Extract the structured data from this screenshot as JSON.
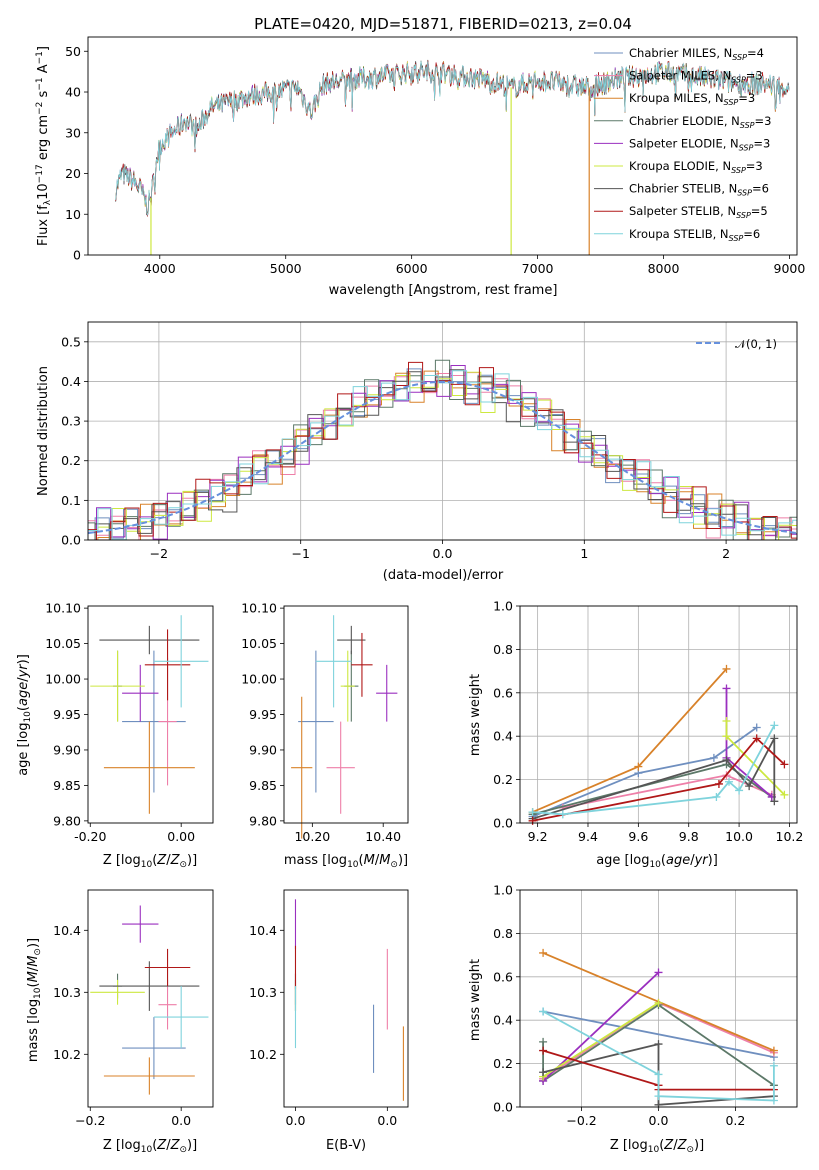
{
  "title": "PLATE=0420, MJD=51871, FIBERID=0213, z=0.04",
  "colors": {
    "chabrier_miles": "#6f8fbf",
    "salpeter_miles": "#ee7fa8",
    "kroupa_miles": "#d8822a",
    "chabrier_elodie": "#5c7868",
    "salpeter_elodie": "#9a2fbf",
    "kroupa_elodie": "#cde840",
    "chabrier_stelib": "#555555",
    "salpeter_stelib": "#b01818",
    "kroupa_stelib": "#7fd3dc",
    "normal": "#6690dd",
    "grid": "#b0b0b0"
  },
  "chart_data": [
    {
      "id": "spectrum",
      "type": "line",
      "title": "PLATE=0420, MJD=51871, FIBERID=0213, z=0.04",
      "xlabel": "wavelength [Angstrom, rest frame]",
      "ylabel": "Flux [f_λ 10^-17 erg cm^-2 s^-1 A^-1]",
      "xlim": [
        3430,
        9060
      ],
      "ylim": [
        0,
        53.5
      ],
      "xticks": [
        4000,
        5000,
        6000,
        7000,
        8000,
        9000
      ],
      "yticks": [
        0,
        10,
        20,
        30,
        40,
        50
      ],
      "grid": false,
      "legend_position": "top-right",
      "legend": [
        "Chabrier MILES, N_SSP=4",
        "Salpeter MILES, N_SSP=3",
        "Kroupa MILES, N_SSP=3",
        "Chabrier ELODIE, N_SSP=3",
        "Salpeter ELODIE, N_SSP=3",
        "Kroupa ELODIE, N_SSP=3",
        "Chabrier STELIB, N_SSP=6",
        "Salpeter STELIB, N_SSP=5",
        "Kroupa STELIB, N_SSP=6"
      ],
      "continuum": [
        [
          3650,
          16
        ],
        [
          3700,
          20
        ],
        [
          3800,
          18
        ],
        [
          3850,
          16
        ],
        [
          3900,
          12
        ],
        [
          3930,
          14
        ],
        [
          3970,
          23
        ],
        [
          4000,
          27
        ],
        [
          4100,
          30
        ],
        [
          4200,
          33
        ],
        [
          4300,
          31
        ],
        [
          4400,
          36
        ],
        [
          4500,
          37
        ],
        [
          4700,
          39
        ],
        [
          4900,
          40
        ],
        [
          5100,
          41
        ],
        [
          5200,
          35
        ],
        [
          5300,
          42
        ],
        [
          5500,
          43
        ],
        [
          5800,
          44
        ],
        [
          6000,
          45
        ],
        [
          6200,
          45
        ],
        [
          6400,
          44
        ],
        [
          6600,
          43
        ],
        [
          6800,
          41
        ],
        [
          7000,
          43
        ],
        [
          7200,
          42
        ],
        [
          7400,
          41
        ],
        [
          7600,
          43
        ],
        [
          7800,
          44
        ],
        [
          8000,
          45
        ],
        [
          8200,
          44
        ],
        [
          8400,
          43
        ],
        [
          8600,
          42
        ],
        [
          8800,
          42
        ],
        [
          9000,
          41
        ]
      ],
      "dropouts": [
        {
          "x": 3930,
          "series": "kroupa_elodie",
          "y": 0
        },
        {
          "x": 6790,
          "series": "kroupa_elodie",
          "y": 0
        },
        {
          "x": 7410,
          "series": "kroupa_miles",
          "y": 0
        }
      ]
    },
    {
      "id": "residuals",
      "type": "histogram",
      "xlabel": "(data-model)/error",
      "ylabel": "Normed distribution",
      "xlim": [
        -2.5,
        2.5
      ],
      "ylim": [
        0,
        0.55
      ],
      "xticks": [
        -2,
        -1,
        0,
        1,
        2
      ],
      "yticks": [
        0.0,
        0.1,
        0.2,
        0.3,
        0.4,
        0.5
      ],
      "grid": true,
      "legend_position": "top-right",
      "legend": [
        "𝒩(0, 1)"
      ],
      "bin_width": 0.1,
      "bins_start": -2.5,
      "series": [
        {
          "key": "chabrier_miles",
          "offsets": [
            0.0,
            0.01,
            -0.01,
            0.02,
            -0.01,
            0.0,
            0.01,
            -0.02,
            0.01,
            0.0
          ]
        },
        {
          "key": "salpeter_miles",
          "offsets": [
            0.01,
            -0.01,
            0.02,
            0.0,
            -0.02,
            0.01,
            0.0,
            0.01,
            -0.01,
            0.02
          ]
        },
        {
          "key": "kroupa_miles",
          "offsets": [
            -0.01,
            0.0,
            0.01,
            -0.02,
            0.02,
            0.0,
            -0.01,
            0.01,
            0.0,
            -0.01
          ]
        },
        {
          "key": "chabrier_elodie",
          "offsets": [
            0.02,
            -0.02,
            0.0,
            0.01,
            -0.01,
            0.02,
            -0.02,
            0.0,
            0.01,
            0.0
          ]
        },
        {
          "key": "salpeter_elodie",
          "offsets": [
            0.0,
            0.02,
            -0.01,
            0.0,
            0.01,
            -0.02,
            0.02,
            -0.01,
            0.0,
            0.01
          ]
        },
        {
          "key": "kroupa_elodie",
          "offsets": [
            0.01,
            0.0,
            0.02,
            -0.01,
            0.0,
            0.01,
            -0.01,
            0.02,
            -0.02,
            0.0
          ]
        },
        {
          "key": "chabrier_stelib",
          "offsets": [
            -0.02,
            0.01,
            0.0,
            0.01,
            -0.01,
            0.0,
            0.02,
            -0.01,
            0.01,
            -0.02
          ]
        },
        {
          "key": "salpeter_stelib",
          "offsets": [
            0.0,
            -0.01,
            0.01,
            0.02,
            -0.02,
            0.01,
            0.0,
            -0.02,
            0.02,
            0.01
          ]
        },
        {
          "key": "kroupa_stelib",
          "offsets": [
            0.01,
            0.02,
            -0.02,
            0.0,
            0.01,
            -0.01,
            0.01,
            0.0,
            -0.01,
            0.02
          ]
        }
      ]
    },
    {
      "id": "age_vs_Z",
      "type": "errorbar",
      "xlabel": "Z [log10(Z/Z⊙)]",
      "ylabel": "age [log10(age/yr)]",
      "xlim": [
        -0.205,
        0.07
      ],
      "ylim": [
        9.797,
        10.103
      ],
      "xticks": [
        -0.2,
        0.0
      ],
      "yticks": [
        9.8,
        9.85,
        9.9,
        9.95,
        10.0,
        10.05,
        10.1
      ],
      "grid": false,
      "points": [
        {
          "key": "chabrier_miles",
          "x": -0.06,
          "y": 9.94,
          "xerr": 0.07,
          "yerr": 0.1
        },
        {
          "key": "salpeter_miles",
          "x": -0.03,
          "y": 9.94,
          "xerr": 0.02,
          "yerr": 0.09
        },
        {
          "key": "kroupa_miles",
          "x": -0.07,
          "y": 9.875,
          "xerr": 0.1,
          "yerr": 0.065
        },
        {
          "key": "chabrier_elodie",
          "x": -0.14,
          "y": 9.99,
          "xerr": 0.01,
          "yerr": 0.05
        },
        {
          "key": "salpeter_elodie",
          "x": -0.09,
          "y": 9.98,
          "xerr": 0.04,
          "yerr": 0.04
        },
        {
          "key": "kroupa_elodie",
          "x": -0.14,
          "y": 9.99,
          "xerr": 0.06,
          "yerr": 0.05
        },
        {
          "key": "chabrier_stelib",
          "x": -0.07,
          "y": 10.055,
          "xerr": 0.11,
          "yerr": 0.02
        },
        {
          "key": "salpeter_stelib",
          "x": -0.03,
          "y": 10.02,
          "xerr": 0.05,
          "yerr": 0.05
        },
        {
          "key": "kroupa_stelib",
          "x": 0.0,
          "y": 10.025,
          "xerr": 0.06,
          "yerr": 0.065
        }
      ]
    },
    {
      "id": "age_vs_mass",
      "type": "errorbar",
      "xlabel": "mass [log10(M/M⊙)]",
      "ylabel": "",
      "xlim": [
        10.12,
        10.47
      ],
      "ylim": [
        9.797,
        10.103
      ],
      "xticks": [
        10.2,
        10.4
      ],
      "yticks": [
        9.8,
        9.85,
        9.9,
        9.95,
        10.0,
        10.05,
        10.1
      ],
      "grid": false,
      "points": [
        {
          "key": "chabrier_miles",
          "x": 10.21,
          "y": 9.94,
          "xerr": 0.05,
          "yerr": 0.1
        },
        {
          "key": "salpeter_miles",
          "x": 10.28,
          "y": 9.875,
          "xerr": 0.04,
          "yerr": 0.065
        },
        {
          "key": "kroupa_miles",
          "x": 10.17,
          "y": 9.875,
          "xerr": 0.03,
          "yerr": 0.1
        },
        {
          "key": "chabrier_elodie",
          "x": 10.31,
          "y": 9.99,
          "xerr": 0.02,
          "yerr": 0.05
        },
        {
          "key": "salpeter_elodie",
          "x": 10.41,
          "y": 9.98,
          "xerr": 0.03,
          "yerr": 0.04
        },
        {
          "key": "kroupa_elodie",
          "x": 10.3,
          "y": 9.99,
          "xerr": 0.02,
          "yerr": 0.05
        },
        {
          "key": "chabrier_stelib",
          "x": 10.31,
          "y": 10.055,
          "xerr": 0.04,
          "yerr": 0.02
        },
        {
          "key": "salpeter_stelib",
          "x": 10.34,
          "y": 10.02,
          "xerr": 0.03,
          "yerr": 0.045
        },
        {
          "key": "kroupa_stelib",
          "x": 10.26,
          "y": 10.025,
          "xerr": 0.05,
          "yerr": 0.065
        }
      ]
    },
    {
      "id": "mass_weight_vs_age",
      "type": "line",
      "xlabel": "age [log10(age/yr)]",
      "ylabel": "mass weight",
      "xlim": [
        9.13,
        10.23
      ],
      "ylim": [
        0,
        1.0
      ],
      "xticks": [
        9.2,
        9.4,
        9.6,
        9.8,
        10.0,
        10.2
      ],
      "yticks": [
        0.0,
        0.2,
        0.4,
        0.6,
        0.8,
        1.0
      ],
      "grid": true,
      "series": [
        {
          "key": "chabrier_miles",
          "x": [
            9.18,
            9.6,
            9.9,
            10.07
          ],
          "y": [
            0.03,
            0.23,
            0.3,
            0.44
          ]
        },
        {
          "key": "salpeter_miles",
          "x": [
            9.3,
            9.95,
            10.13
          ],
          "y": [
            0.07,
            0.22,
            0.13
          ]
        },
        {
          "key": "kroupa_miles",
          "x": [
            9.18,
            9.6,
            9.95
          ],
          "y": [
            0.05,
            0.26,
            0.71
          ]
        },
        {
          "key": "chabrier_elodie",
          "x": [
            9.18,
            9.95,
            10.13
          ],
          "y": [
            0.04,
            0.27,
            0.12
          ]
        },
        {
          "key": "salpeter_elodie",
          "x": [
            9.95,
            9.95,
            10.13
          ],
          "y": [
            0.62,
            0.3,
            0.12
          ]
        },
        {
          "key": "kroupa_elodie",
          "x": [
            9.95,
            9.95,
            10.18
          ],
          "y": [
            0.47,
            0.4,
            0.13
          ]
        },
        {
          "key": "chabrier_stelib",
          "x": [
            9.18,
            9.95,
            10.04,
            10.14,
            10.14
          ],
          "y": [
            0.02,
            0.29,
            0.17,
            0.39,
            0.1
          ]
        },
        {
          "key": "salpeter_stelib",
          "x": [
            9.18,
            9.92,
            10.07,
            10.18
          ],
          "y": [
            0.01,
            0.18,
            0.39,
            0.27
          ]
        },
        {
          "key": "kroupa_stelib",
          "x": [
            9.18,
            9.3,
            9.91,
            9.96,
            10.0,
            10.14
          ],
          "y": [
            0.05,
            0.04,
            0.12,
            0.19,
            0.15,
            0.45
          ]
        }
      ]
    },
    {
      "id": "mass_vs_Z",
      "type": "errorbar",
      "xlabel": "Z [log10(Z/Z⊙)]",
      "ylabel": "mass [log10(M/M⊙)]",
      "xlim": [
        -0.205,
        0.07
      ],
      "ylim": [
        10.115,
        10.465
      ],
      "xticks": [
        -0.2,
        0.0
      ],
      "yticks": [
        10.2,
        10.3,
        10.4
      ],
      "grid": false,
      "points": [
        {
          "key": "chabrier_miles",
          "x": -0.06,
          "y": 10.21,
          "xerr": 0.07,
          "yerr": 0.05
        },
        {
          "key": "salpeter_miles",
          "x": -0.03,
          "y": 10.28,
          "xerr": 0.02,
          "yerr": 0.04
        },
        {
          "key": "kroupa_miles",
          "x": -0.07,
          "y": 10.165,
          "xerr": 0.1,
          "yerr": 0.03
        },
        {
          "key": "chabrier_elodie",
          "x": -0.14,
          "y": 10.31,
          "xerr": 0.01,
          "yerr": 0.02
        },
        {
          "key": "salpeter_elodie",
          "x": -0.09,
          "y": 10.41,
          "xerr": 0.04,
          "yerr": 0.03
        },
        {
          "key": "kroupa_elodie",
          "x": -0.14,
          "y": 10.3,
          "xerr": 0.06,
          "yerr": 0.02
        },
        {
          "key": "chabrier_stelib",
          "x": -0.07,
          "y": 10.31,
          "xerr": 0.11,
          "yerr": 0.04
        },
        {
          "key": "salpeter_stelib",
          "x": -0.03,
          "y": 10.34,
          "xerr": 0.05,
          "yerr": 0.03
        },
        {
          "key": "kroupa_stelib",
          "x": 0.0,
          "y": 10.26,
          "xerr": 0.06,
          "yerr": 0.05
        }
      ]
    },
    {
      "id": "mass_vs_ebv",
      "type": "errorbar",
      "xlabel": "E(B-V)",
      "ylabel": "",
      "xlim": [
        -0.0025,
        0.0245
      ],
      "ylim": [
        10.115,
        10.465
      ],
      "xticks": [
        0.0,
        0.02
      ],
      "yticks": [
        10.2,
        10.3,
        10.4
      ],
      "grid": false,
      "points": [
        {
          "key": "chabrier_miles",
          "x": 0.017,
          "y": 10.225,
          "xerr": 0,
          "yerr": 0.055
        },
        {
          "key": "salpeter_miles",
          "x": 0.02,
          "y": 10.305,
          "xerr": 0,
          "yerr": 0.065
        },
        {
          "key": "kroupa_miles",
          "x": 0.0235,
          "y": 10.185,
          "xerr": 0,
          "yerr": 0.06
        },
        {
          "key": "chabrier_elodie",
          "x": 0.0,
          "y": 10.3,
          "xerr": 0,
          "yerr": 0.02
        },
        {
          "key": "salpeter_elodie",
          "x": 0.0,
          "y": 10.41,
          "xerr": 0,
          "yerr": 0.04
        },
        {
          "key": "kroupa_elodie",
          "x": 0.0,
          "y": 10.29,
          "xerr": 0,
          "yerr": 0.02
        },
        {
          "key": "chabrier_stelib",
          "x": 0.0,
          "y": 10.3,
          "xerr": 0,
          "yerr": 0.03
        },
        {
          "key": "salpeter_stelib",
          "x": 0.0,
          "y": 10.34,
          "xerr": 0,
          "yerr": 0.035
        },
        {
          "key": "kroupa_stelib",
          "x": 0.0,
          "y": 10.26,
          "xerr": 0,
          "yerr": 0.05
        }
      ]
    },
    {
      "id": "mass_weight_vs_Z",
      "type": "line",
      "xlabel": "Z [log10(Z/Z⊙)]",
      "ylabel": "mass weight",
      "xlim": [
        -0.36,
        0.36
      ],
      "ylim": [
        0,
        1.0
      ],
      "xticks": [
        -0.2,
        0.0,
        0.2
      ],
      "yticks": [
        0.0,
        0.2,
        0.4,
        0.6,
        0.8,
        1.0
      ],
      "grid": true,
      "series": [
        {
          "key": "chabrier_miles",
          "x": [
            -0.3,
            0.3
          ],
          "y": [
            0.44,
            0.23
          ]
        },
        {
          "key": "salpeter_miles",
          "x": [
            -0.3,
            0.0,
            0.3
          ],
          "y": [
            0.13,
            0.48,
            0.25
          ]
        },
        {
          "key": "kroupa_miles",
          "x": [
            -0.3,
            0.3
          ],
          "y": [
            0.71,
            0.26
          ]
        },
        {
          "key": "chabrier_elodie",
          "x": [
            -0.3,
            -0.3,
            0.0,
            0.3
          ],
          "y": [
            0.3,
            0.12,
            0.47,
            0.1
          ]
        },
        {
          "key": "salpeter_elodie",
          "x": [
            -0.3,
            0.0
          ],
          "y": [
            0.12,
            0.62
          ]
        },
        {
          "key": "kroupa_elodie",
          "x": [
            -0.3,
            0.0
          ],
          "y": [
            0.14,
            0.48
          ]
        },
        {
          "key": "chabrier_stelib",
          "x": [
            -0.3,
            0.0,
            0.0,
            0.3
          ],
          "y": [
            0.16,
            0.29,
            0.01,
            0.05
          ]
        },
        {
          "key": "salpeter_stelib",
          "x": [
            -0.3,
            0.0,
            0.0,
            0.3
          ],
          "y": [
            0.26,
            0.1,
            0.08,
            0.08
          ]
        },
        {
          "key": "kroupa_stelib",
          "x": [
            -0.3,
            0.0,
            0.0,
            0.3,
            0.3
          ],
          "y": [
            0.44,
            0.15,
            0.05,
            0.03,
            0.19
          ]
        }
      ]
    }
  ]
}
